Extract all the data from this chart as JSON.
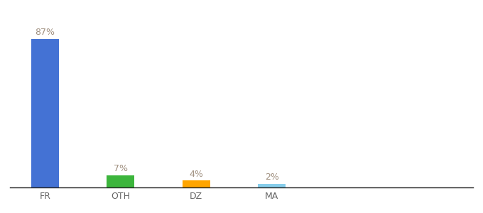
{
  "categories": [
    "FR",
    "OTH",
    "DZ",
    "MA"
  ],
  "values": [
    87,
    7,
    4,
    2
  ],
  "bar_colors": [
    "#4472D4",
    "#3CB53C",
    "#FFA500",
    "#87CEEB"
  ],
  "labels": [
    "87%",
    "7%",
    "4%",
    "2%"
  ],
  "ylim": [
    0,
    100
  ],
  "label_color": "#a09080",
  "label_fontsize": 9,
  "tick_fontsize": 9,
  "tick_color": "#666666",
  "background_color": "#ffffff",
  "bar_width": 0.55,
  "x_positions": [
    0.5,
    2.0,
    3.5,
    5.0
  ],
  "xlim": [
    -0.2,
    9.0
  ]
}
